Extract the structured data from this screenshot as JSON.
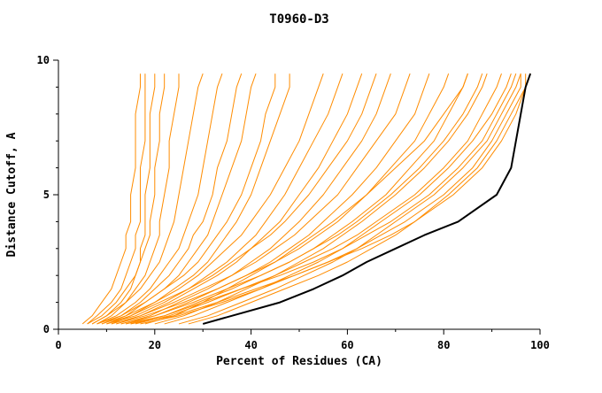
{
  "chart_data": {
    "type": "line",
    "title": "T0960-D3",
    "xlabel": "Percent of Residues (CA)",
    "ylabel": "Distance Cutoff, A",
    "xlim": [
      0,
      100
    ],
    "ylim": [
      0,
      10
    ],
    "x_major_ticks": [
      0,
      20,
      40,
      60,
      80,
      100
    ],
    "x_minor_ticks": [
      10,
      30,
      50,
      70,
      90
    ],
    "y_major_ticks": [
      0,
      5,
      10
    ],
    "y_minor_ticks": [
      1,
      2,
      3,
      4,
      6,
      7,
      8,
      9
    ],
    "grid": false,
    "legend": "none",
    "colors": {
      "model_lines": "#ff8c00",
      "highlight_line": "#000000",
      "axis": "#000000",
      "background": "#ffffff"
    },
    "sample_y": [
      0.2,
      0.5,
      1.0,
      1.5,
      2.0,
      2.5,
      3.0,
      3.5,
      4.0,
      5.0,
      6.0,
      7.0,
      8.0,
      9.0,
      9.5
    ],
    "series": [
      {
        "color": "orange",
        "highlight": false,
        "xs": [
          5,
          7,
          9,
          11,
          12,
          13,
          14,
          14,
          15,
          15,
          16,
          16,
          16,
          17,
          17
        ]
      },
      {
        "color": "orange",
        "highlight": false,
        "xs": [
          6,
          8,
          11,
          13,
          14,
          15,
          16,
          16,
          17,
          17,
          17,
          18,
          18,
          18,
          18
        ]
      },
      {
        "color": "orange",
        "highlight": false,
        "xs": [
          7,
          10,
          13,
          15,
          16,
          17,
          17,
          18,
          18,
          18,
          19,
          19,
          19,
          20,
          20
        ]
      },
      {
        "color": "orange",
        "highlight": false,
        "xs": [
          6,
          9,
          12,
          14,
          16,
          17,
          18,
          19,
          19,
          20,
          20,
          21,
          21,
          22,
          22
        ]
      },
      {
        "color": "orange",
        "highlight": false,
        "xs": [
          8,
          11,
          14,
          16,
          18,
          19,
          20,
          21,
          21,
          22,
          23,
          23,
          24,
          25,
          25
        ]
      },
      {
        "color": "orange",
        "highlight": false,
        "xs": [
          7,
          10,
          14,
          17,
          19,
          21,
          22,
          23,
          24,
          25,
          26,
          27,
          28,
          29,
          30
        ]
      },
      {
        "color": "orange",
        "highlight": false,
        "xs": [
          8,
          12,
          16,
          19,
          21,
          23,
          25,
          26,
          27,
          29,
          30,
          31,
          32,
          33,
          34
        ]
      },
      {
        "color": "orange",
        "highlight": false,
        "xs": [
          9,
          13,
          17,
          20,
          23,
          25,
          27,
          28,
          30,
          32,
          33,
          35,
          36,
          37,
          38
        ]
      },
      {
        "color": "orange",
        "highlight": false,
        "xs": [
          10,
          14,
          18,
          22,
          25,
          27,
          29,
          31,
          32,
          34,
          36,
          38,
          39,
          40,
          41
        ]
      },
      {
        "color": "orange",
        "highlight": false,
        "xs": [
          8,
          13,
          18,
          22,
          26,
          29,
          31,
          33,
          35,
          38,
          40,
          42,
          43,
          45,
          45
        ]
      },
      {
        "color": "orange",
        "highlight": false,
        "xs": [
          11,
          15,
          20,
          24,
          28,
          31,
          33,
          35,
          37,
          40,
          42,
          44,
          46,
          48,
          48
        ]
      },
      {
        "color": "orange",
        "highlight": false,
        "xs": [
          9,
          14,
          20,
          25,
          29,
          32,
          35,
          38,
          40,
          44,
          47,
          50,
          52,
          54,
          55
        ]
      },
      {
        "color": "orange",
        "highlight": false,
        "xs": [
          10,
          16,
          22,
          27,
          31,
          35,
          38,
          41,
          43,
          47,
          50,
          53,
          56,
          58,
          59
        ]
      },
      {
        "color": "orange",
        "highlight": false,
        "xs": [
          12,
          17,
          23,
          28,
          33,
          37,
          40,
          43,
          46,
          50,
          54,
          57,
          60,
          62,
          63
        ]
      },
      {
        "color": "orange",
        "highlight": false,
        "xs": [
          10,
          15,
          21,
          27,
          32,
          36,
          40,
          44,
          47,
          52,
          56,
          60,
          63,
          65,
          66
        ]
      },
      {
        "color": "orange",
        "highlight": false,
        "xs": [
          13,
          19,
          25,
          31,
          36,
          40,
          44,
          47,
          50,
          55,
          59,
          63,
          66,
          68,
          69
        ]
      },
      {
        "color": "orange",
        "highlight": false,
        "xs": [
          11,
          17,
          24,
          30,
          36,
          41,
          45,
          49,
          52,
          58,
          62,
          66,
          70,
          72,
          73
        ]
      },
      {
        "color": "orange",
        "highlight": false,
        "xs": [
          14,
          20,
          27,
          33,
          39,
          44,
          48,
          52,
          55,
          61,
          66,
          70,
          74,
          76,
          77
        ]
      },
      {
        "color": "orange",
        "highlight": false,
        "xs": [
          12,
          18,
          26,
          33,
          39,
          45,
          50,
          54,
          58,
          64,
          69,
          74,
          77,
          80,
          81
        ]
      },
      {
        "color": "orange",
        "highlight": false,
        "xs": [
          15,
          22,
          29,
          36,
          42,
          48,
          53,
          57,
          61,
          68,
          73,
          78,
          81,
          84,
          85
        ]
      },
      {
        "color": "orange",
        "highlight": false,
        "xs": [
          13,
          20,
          28,
          35,
          42,
          48,
          53,
          58,
          62,
          69,
          75,
          80,
          84,
          87,
          88
        ]
      },
      {
        "color": "orange",
        "highlight": false,
        "xs": [
          16,
          23,
          31,
          38,
          45,
          51,
          57,
          62,
          66,
          74,
          80,
          85,
          88,
          91,
          92
        ]
      },
      {
        "color": "orange",
        "highlight": false,
        "xs": [
          14,
          22,
          30,
          38,
          46,
          53,
          59,
          64,
          69,
          77,
          83,
          88,
          91,
          94,
          95
        ]
      },
      {
        "color": "orange",
        "highlight": false,
        "xs": [
          17,
          25,
          34,
          42,
          49,
          56,
          62,
          67,
          72,
          80,
          86,
          90,
          93,
          96,
          96
        ]
      },
      {
        "color": "orange",
        "highlight": false,
        "xs": [
          15,
          24,
          33,
          41,
          49,
          56,
          63,
          69,
          74,
          82,
          88,
          92,
          95,
          97,
          98
        ]
      },
      {
        "color": "orange",
        "highlight": false,
        "xs": [
          18,
          24,
          30,
          35,
          40,
          45,
          49,
          53,
          57,
          64,
          70,
          76,
          80,
          84,
          85
        ]
      },
      {
        "color": "orange",
        "highlight": false,
        "xs": [
          20,
          26,
          33,
          39,
          45,
          50,
          55,
          59,
          63,
          70,
          76,
          81,
          85,
          88,
          89
        ]
      },
      {
        "color": "orange",
        "highlight": false,
        "xs": [
          22,
          28,
          35,
          42,
          48,
          54,
          59,
          63,
          67,
          75,
          81,
          86,
          90,
          93,
          94
        ]
      },
      {
        "color": "orange",
        "highlight": false,
        "xs": [
          25,
          31,
          38,
          45,
          51,
          57,
          62,
          66,
          70,
          78,
          84,
          89,
          92,
          95,
          96
        ]
      },
      {
        "color": "orange",
        "highlight": false,
        "xs": [
          27,
          33,
          40,
          47,
          54,
          60,
          65,
          70,
          74,
          81,
          87,
          91,
          94,
          97,
          97
        ]
      },
      {
        "color": "black",
        "highlight": true,
        "xs": [
          30,
          36,
          46,
          53,
          59,
          64,
          70,
          76,
          83,
          91,
          94,
          95,
          96,
          97,
          98
        ]
      }
    ]
  }
}
